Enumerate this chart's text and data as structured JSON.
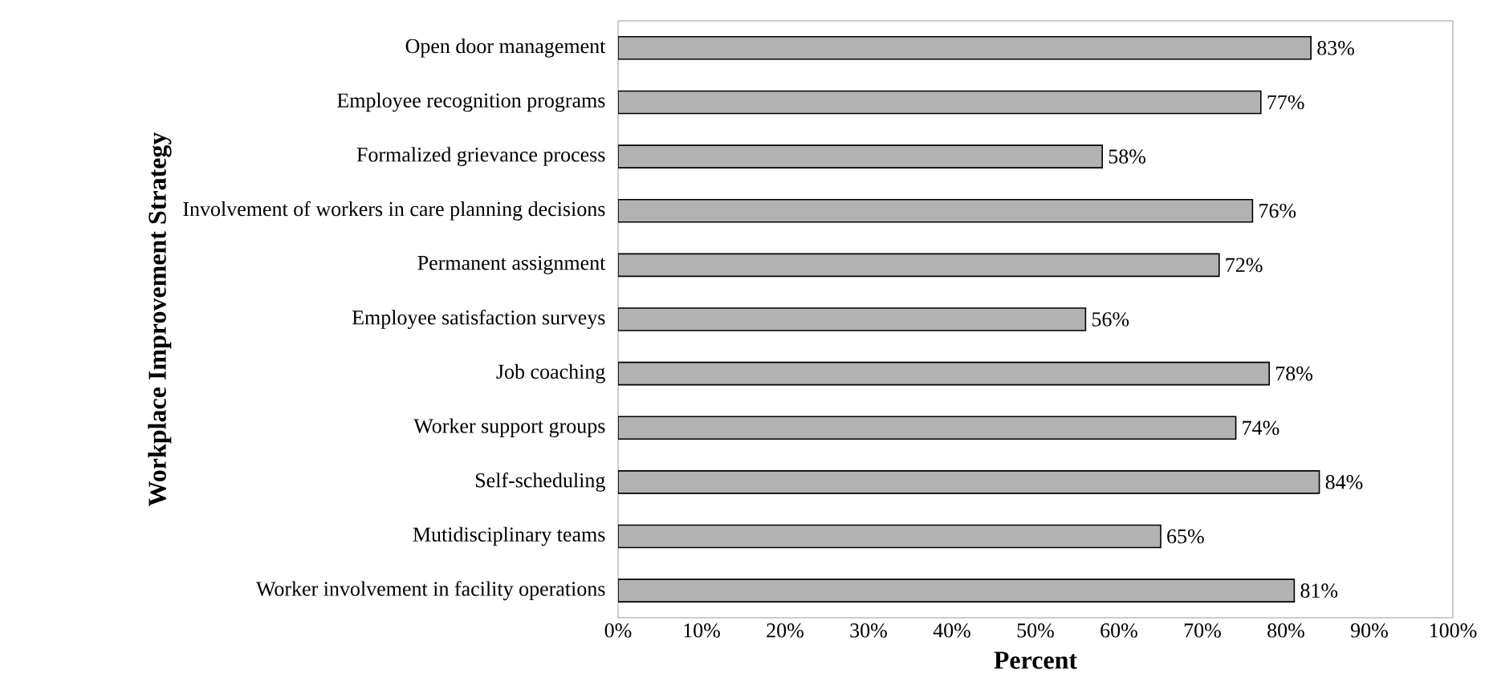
{
  "chart_data": {
    "type": "bar",
    "orientation": "horizontal",
    "xlabel": "Percent",
    "ylabel": "Workplace Improvement Strategy",
    "categories": [
      "Open door management",
      "Employee recognition programs",
      "Formalized grievance process",
      "Involvement of workers in care planning decisions",
      "Permanent assignment",
      "Employee satisfaction surveys",
      "Job coaching",
      "Worker support groups",
      "Self-scheduling",
      "Mutidisciplinary teams",
      "Worker involvement in facility operations"
    ],
    "values": [
      83,
      77,
      58,
      76,
      72,
      56,
      78,
      74,
      84,
      65,
      81
    ],
    "value_labels": [
      "83%",
      "77%",
      "58%",
      "76%",
      "72%",
      "56%",
      "78%",
      "74%",
      "84%",
      "65%",
      "81%"
    ],
    "color": "#b2b2b2",
    "xlim": [
      0,
      100
    ],
    "xticks": [
      {
        "value": 0,
        "label": "0%"
      },
      {
        "value": 10,
        "label": "10%"
      },
      {
        "value": 20,
        "label": "20%"
      },
      {
        "value": 30,
        "label": "30%"
      },
      {
        "value": 40,
        "label": "40%"
      },
      {
        "value": 50,
        "label": "50%"
      },
      {
        "value": 60,
        "label": "60%"
      },
      {
        "value": 70,
        "label": "70%"
      },
      {
        "value": 80,
        "label": "80%"
      },
      {
        "value": 90,
        "label": "90%"
      },
      {
        "value": 100,
        "label": "100%"
      }
    ],
    "grid": false
  }
}
